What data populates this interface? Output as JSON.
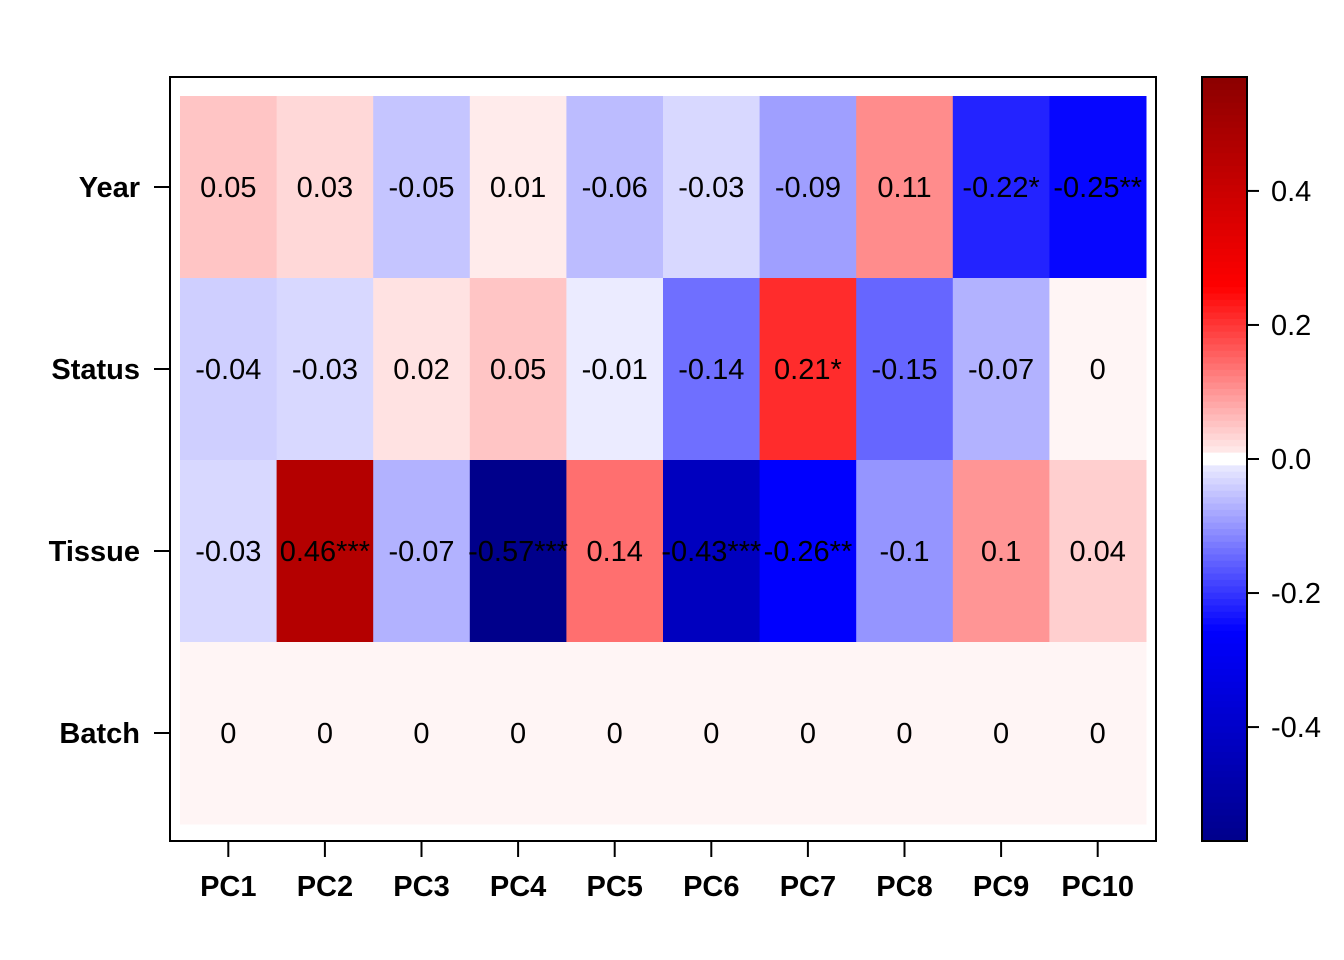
{
  "chart_data": {
    "type": "heatmap",
    "title": "",
    "xlabel": "",
    "ylabel": "",
    "rows": [
      "Year",
      "Status",
      "Tissue",
      "Batch"
    ],
    "columns": [
      "PC1",
      "PC2",
      "PC3",
      "PC4",
      "PC5",
      "PC6",
      "PC7",
      "PC8",
      "PC9",
      "PC10"
    ],
    "values": [
      [
        0.05,
        0.03,
        -0.05,
        0.01,
        -0.06,
        -0.03,
        -0.09,
        0.11,
        -0.22,
        -0.25
      ],
      [
        -0.04,
        -0.03,
        0.02,
        0.05,
        -0.01,
        -0.14,
        0.21,
        -0.15,
        -0.07,
        0
      ],
      [
        -0.03,
        0.46,
        -0.07,
        -0.57,
        0.14,
        -0.43,
        -0.26,
        -0.1,
        0.1,
        0.04
      ],
      [
        0,
        0,
        0,
        0,
        0,
        0,
        0,
        0,
        0,
        0
      ]
    ],
    "labels": [
      [
        "0.05",
        "0.03",
        "-0.05",
        "0.01",
        "-0.06",
        "-0.03",
        "-0.09",
        "0.11",
        "-0.22*",
        "-0.25**"
      ],
      [
        "-0.04",
        "-0.03",
        "0.02",
        "0.05",
        "-0.01",
        "-0.14",
        "0.21*",
        "-0.15",
        "-0.07",
        "0"
      ],
      [
        "-0.03",
        "0.46***",
        "-0.07",
        "-0.57***",
        "0.14",
        "-0.43***",
        "-0.26**",
        "-0.1",
        "0.1",
        "0.04"
      ],
      [
        "0",
        "0",
        "0",
        "0",
        "0",
        "0",
        "0",
        "0",
        "0",
        "0"
      ]
    ],
    "colorscale": {
      "min": -0.57,
      "max": 0.57,
      "low_color": "#00008b",
      "mid_low_color": "#0000ff",
      "center_color": "#ffffff",
      "mid_high_color": "#ff0000",
      "high_color": "#8b0000",
      "ticks": [
        0.4,
        0.2,
        0.0,
        -0.2,
        -0.4
      ],
      "tick_labels": [
        "0.4",
        "0.2",
        "0.0",
        "-0.2",
        "-0.4"
      ]
    },
    "grid": false,
    "legend": "right colorbar"
  }
}
